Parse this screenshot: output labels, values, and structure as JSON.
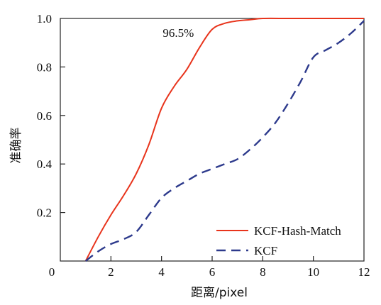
{
  "chart_data": {
    "type": "line",
    "xlabel": "距离/pixel",
    "ylabel": "准确率",
    "xlim": [
      0,
      12
    ],
    "ylim": [
      0,
      1.0
    ],
    "x_ticks": [
      0,
      2,
      4,
      6,
      8,
      10,
      12
    ],
    "x_tick_labels": [
      "0",
      "2",
      "4",
      "6",
      "8",
      "10",
      "12"
    ],
    "y_ticks": [
      0.2,
      0.4,
      0.6,
      0.8,
      1.0
    ],
    "y_tick_labels": [
      "0.2",
      "0.4",
      "0.6",
      "0.8",
      "1.0"
    ],
    "grid": false,
    "legend_position": "bottom-right",
    "annotation": {
      "text": "96.5%",
      "x": 5.7,
      "y": 0.96
    },
    "series": [
      {
        "name": "KCF-Hash-Match",
        "color": "#e8341c",
        "style": "solid",
        "x": [
          1.0,
          1.5,
          2.0,
          2.5,
          3.0,
          3.5,
          4.0,
          4.5,
          5.0,
          5.5,
          6.0,
          6.5,
          7.0,
          7.5,
          8.0,
          9.0,
          10.0,
          11.0,
          12.0
        ],
        "y": [
          0.0,
          0.1,
          0.19,
          0.27,
          0.36,
          0.48,
          0.63,
          0.72,
          0.79,
          0.88,
          0.955,
          0.98,
          0.99,
          0.995,
          1.0,
          1.0,
          1.0,
          1.0,
          1.0
        ]
      },
      {
        "name": "KCF",
        "color": "#2d3a8c",
        "style": "dashed",
        "x": [
          1.0,
          1.5,
          2.0,
          2.5,
          3.0,
          3.5,
          4.0,
          4.5,
          5.0,
          5.5,
          6.0,
          6.5,
          7.0,
          7.5,
          8.0,
          8.5,
          9.0,
          9.5,
          10.0,
          10.5,
          11.0,
          11.5,
          12.0
        ],
        "y": [
          0.0,
          0.04,
          0.07,
          0.09,
          0.12,
          0.19,
          0.26,
          0.3,
          0.33,
          0.36,
          0.38,
          0.4,
          0.42,
          0.46,
          0.51,
          0.57,
          0.65,
          0.74,
          0.84,
          0.87,
          0.9,
          0.94,
          0.99
        ]
      }
    ]
  }
}
